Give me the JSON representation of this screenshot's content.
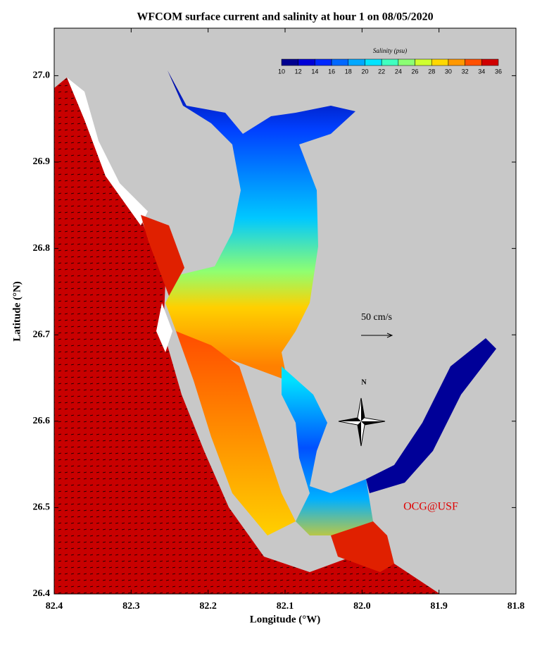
{
  "chart_data": {
    "type": "map",
    "title": "WFCOM surface current and salinity at hour 1 on 08/05/2020",
    "x_label": "Longitude (°W)",
    "y_label": "Latitude (°N)",
    "xlim": [
      82.4,
      81.8
    ],
    "ylim": [
      26.4,
      27.055
    ],
    "xticks": [
      82.4,
      82.3,
      82.2,
      82.1,
      {
        "value": 82,
        "label": "82.0"
      },
      81.9,
      81.8
    ],
    "yticks": [
      26.4,
      26.5,
      26.6,
      26.7,
      26.8,
      26.9,
      {
        "value": 27,
        "label": "27.0"
      }
    ],
    "colorbar": {
      "title": "Salinity (psu)",
      "ticks": [
        10,
        12,
        14,
        16,
        18,
        20,
        22,
        24,
        26,
        28,
        30,
        32,
        34,
        36
      ],
      "colors": [
        "#000090",
        "#0000d8",
        "#0028ff",
        "#0068ff",
        "#00a8ff",
        "#00e4ff",
        "#40ffc0",
        "#8cff74",
        "#d0ff30",
        "#ffd800",
        "#ff9800",
        "#ff5000",
        "#d00000"
      ]
    },
    "annotations": {
      "scale": "50 cm/s",
      "north": "N",
      "credit": "OCG@USF"
    }
  }
}
